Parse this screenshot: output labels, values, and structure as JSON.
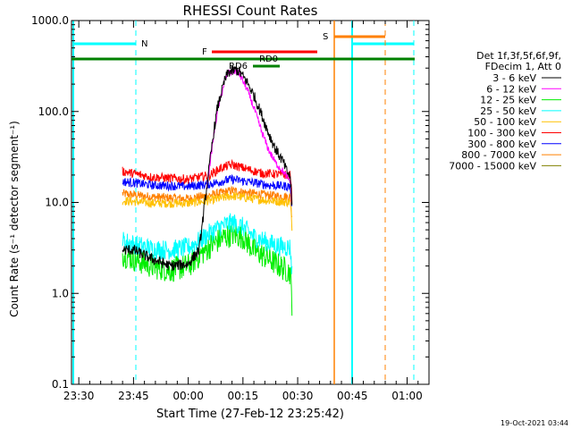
{
  "chart_data": {
    "type": "line",
    "title": "RHESSI Count Rates",
    "xlabel": "Start Time (27-Feb-12 23:25:42)",
    "ylabel": "Count Rate (s⁻¹ detector segment⁻¹)",
    "y_scale": "log",
    "ylim": [
      0.1,
      1000.0
    ],
    "x_tick_labels": [
      "23:30",
      "23:45",
      "00:00",
      "00:15",
      "00:30",
      "00:45",
      "01:00"
    ],
    "y_tick_labels": [
      "0.1",
      "1.0",
      "10.0",
      "100.0",
      "1000.0"
    ],
    "legend_header": [
      "Det 1f,3f,5f,6f,9f,",
      "FDecim 1, Att 0"
    ],
    "legend_position": "right",
    "series": [
      {
        "name": "3 - 6 keV",
        "color": "#000000",
        "points": [
          [
            12,
            3.0
          ],
          [
            15,
            3.0
          ],
          [
            20,
            2.4
          ],
          [
            25,
            2.0
          ],
          [
            30,
            2.1
          ],
          [
            33,
            3.0
          ],
          [
            35,
            14.0
          ],
          [
            37,
            60
          ],
          [
            38,
            110
          ],
          [
            40,
            220
          ],
          [
            41,
            270
          ],
          [
            43,
            285
          ],
          [
            44,
            275
          ],
          [
            46,
            215
          ],
          [
            48,
            150
          ],
          [
            50,
            95
          ],
          [
            52,
            58
          ],
          [
            54,
            38
          ],
          [
            56,
            28
          ],
          [
            57,
            22
          ],
          [
            58,
            19
          ],
          [
            58.5,
            8
          ]
        ]
      },
      {
        "name": "6 - 12 keV",
        "color": "#ff00ff",
        "points": [
          [
            35,
            14.0
          ],
          [
            37,
            55
          ],
          [
            38,
            100
          ],
          [
            40,
            220
          ],
          [
            41,
            265
          ],
          [
            43,
            280
          ],
          [
            44,
            260
          ],
          [
            46,
            180
          ],
          [
            48,
            110
          ],
          [
            50,
            62
          ],
          [
            52,
            38
          ],
          [
            54,
            27
          ],
          [
            56,
            22
          ],
          [
            57,
            19
          ],
          [
            58,
            17
          ],
          [
            58.5,
            8
          ]
        ]
      },
      {
        "name": "12 - 25 keV",
        "color": "#00ee00",
        "points": [
          [
            12,
            2.7
          ],
          [
            16,
            2.3
          ],
          [
            20,
            2.0
          ],
          [
            25,
            1.8
          ],
          [
            30,
            2.0
          ],
          [
            33,
            2.6
          ],
          [
            36,
            3.3
          ],
          [
            39,
            4.0
          ],
          [
            42,
            4.5
          ],
          [
            45,
            4.2
          ],
          [
            48,
            3.0
          ],
          [
            52,
            2.4
          ],
          [
            55,
            2.0
          ],
          [
            58,
            1.7
          ],
          [
            58.5,
            0.7
          ]
        ]
      },
      {
        "name": "25 - 50 keV",
        "color": "#00ffff",
        "points": [
          [
            12,
            3.8
          ],
          [
            16,
            3.4
          ],
          [
            20,
            3.1
          ],
          [
            25,
            3.0
          ],
          [
            30,
            3.2
          ],
          [
            33,
            3.8
          ],
          [
            36,
            4.6
          ],
          [
            39,
            5.5
          ],
          [
            42,
            6.0
          ],
          [
            45,
            5.4
          ],
          [
            48,
            4.2
          ],
          [
            52,
            3.6
          ],
          [
            55,
            3.3
          ],
          [
            58,
            3.2
          ],
          [
            58.5,
            1.5
          ]
        ]
      },
      {
        "name": "50 - 100 keV",
        "color": "#ffc000",
        "points": [
          [
            12,
            10.5
          ],
          [
            20,
            9.8
          ],
          [
            30,
            9.8
          ],
          [
            36,
            10.5
          ],
          [
            42,
            11.8
          ],
          [
            46,
            11.2
          ],
          [
            52,
            10.5
          ],
          [
            58,
            10.0
          ],
          [
            58.5,
            5
          ]
        ]
      },
      {
        "name": "100 - 300 keV",
        "color": "#ff0000",
        "points": [
          [
            12,
            22
          ],
          [
            20,
            19
          ],
          [
            30,
            18
          ],
          [
            36,
            20
          ],
          [
            39,
            24
          ],
          [
            42,
            26
          ],
          [
            45,
            24
          ],
          [
            50,
            21
          ],
          [
            58,
            20
          ],
          [
            58.5,
            10
          ]
        ]
      },
      {
        "name": "300 - 800 keV",
        "color": "#0000ff",
        "points": [
          [
            12,
            17
          ],
          [
            20,
            15.5
          ],
          [
            30,
            15
          ],
          [
            36,
            16
          ],
          [
            42,
            18
          ],
          [
            46,
            17
          ],
          [
            52,
            15.5
          ],
          [
            58,
            15
          ],
          [
            58.5,
            8
          ]
        ]
      },
      {
        "name": "800 - 7000 keV",
        "color": "#ff8000",
        "points": [
          [
            12,
            12.5
          ],
          [
            20,
            11.5
          ],
          [
            30,
            11
          ],
          [
            36,
            12
          ],
          [
            42,
            13.5
          ],
          [
            46,
            12.8
          ],
          [
            52,
            12
          ],
          [
            58,
            11.5
          ],
          [
            58.5,
            6
          ]
        ]
      },
      {
        "name": "7000 - 15000 keV",
        "color": "#808000",
        "points": []
      }
    ],
    "annotations": {
      "night_label": "N",
      "saa_label": "S",
      "flare_label": "F",
      "rd0_label": "RD0",
      "rd6_label": "RD6"
    }
  },
  "timestamp": "19-Oct-2021 03:44"
}
